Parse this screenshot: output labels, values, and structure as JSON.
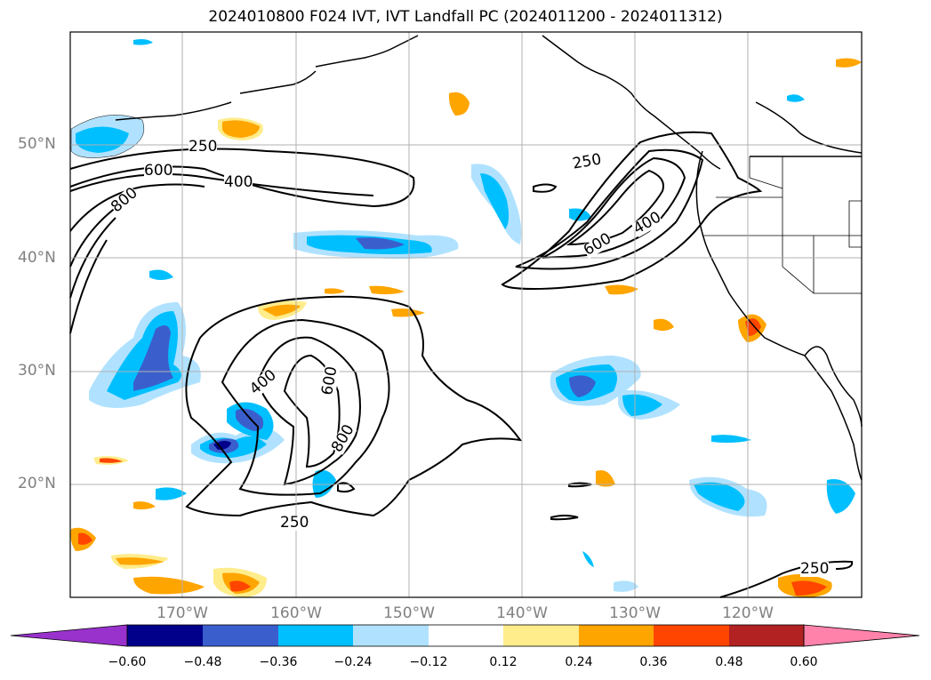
{
  "title": "2024010800 F024 IVT, IVT Landfall PC (2024011200 - 2024011312)",
  "lat_labels": [
    "50°N",
    "40°N",
    "30°N",
    "20°N"
  ],
  "lon_labels": [
    "170°W",
    "160°W",
    "150°W",
    "140°W",
    "130°W",
    "120°W"
  ],
  "contour_labels": [
    "250",
    "600",
    "400",
    "800",
    "250",
    "400",
    "600",
    "400",
    "600",
    "800",
    "250",
    "250"
  ],
  "colorbar": {
    "ticks": [
      "−0.60",
      "−0.48",
      "−0.36",
      "−0.24",
      "−0.12",
      "0.12",
      "0.24",
      "0.36",
      "0.48",
      "0.60"
    ],
    "colors": [
      "#9932cc",
      "#00008b",
      "#3a5fcd",
      "#00bfff",
      "#b0e2ff",
      "#ffffff",
      "#ffec8b",
      "#ffa500",
      "#ff4500",
      "#b22222",
      "#ff82ab"
    ]
  },
  "map": {
    "lon_range": [
      -180,
      -110
    ],
    "lat_range": [
      10,
      60
    ],
    "grid": true,
    "ivt_contour_levels": [
      250,
      400,
      600,
      800
    ]
  }
}
